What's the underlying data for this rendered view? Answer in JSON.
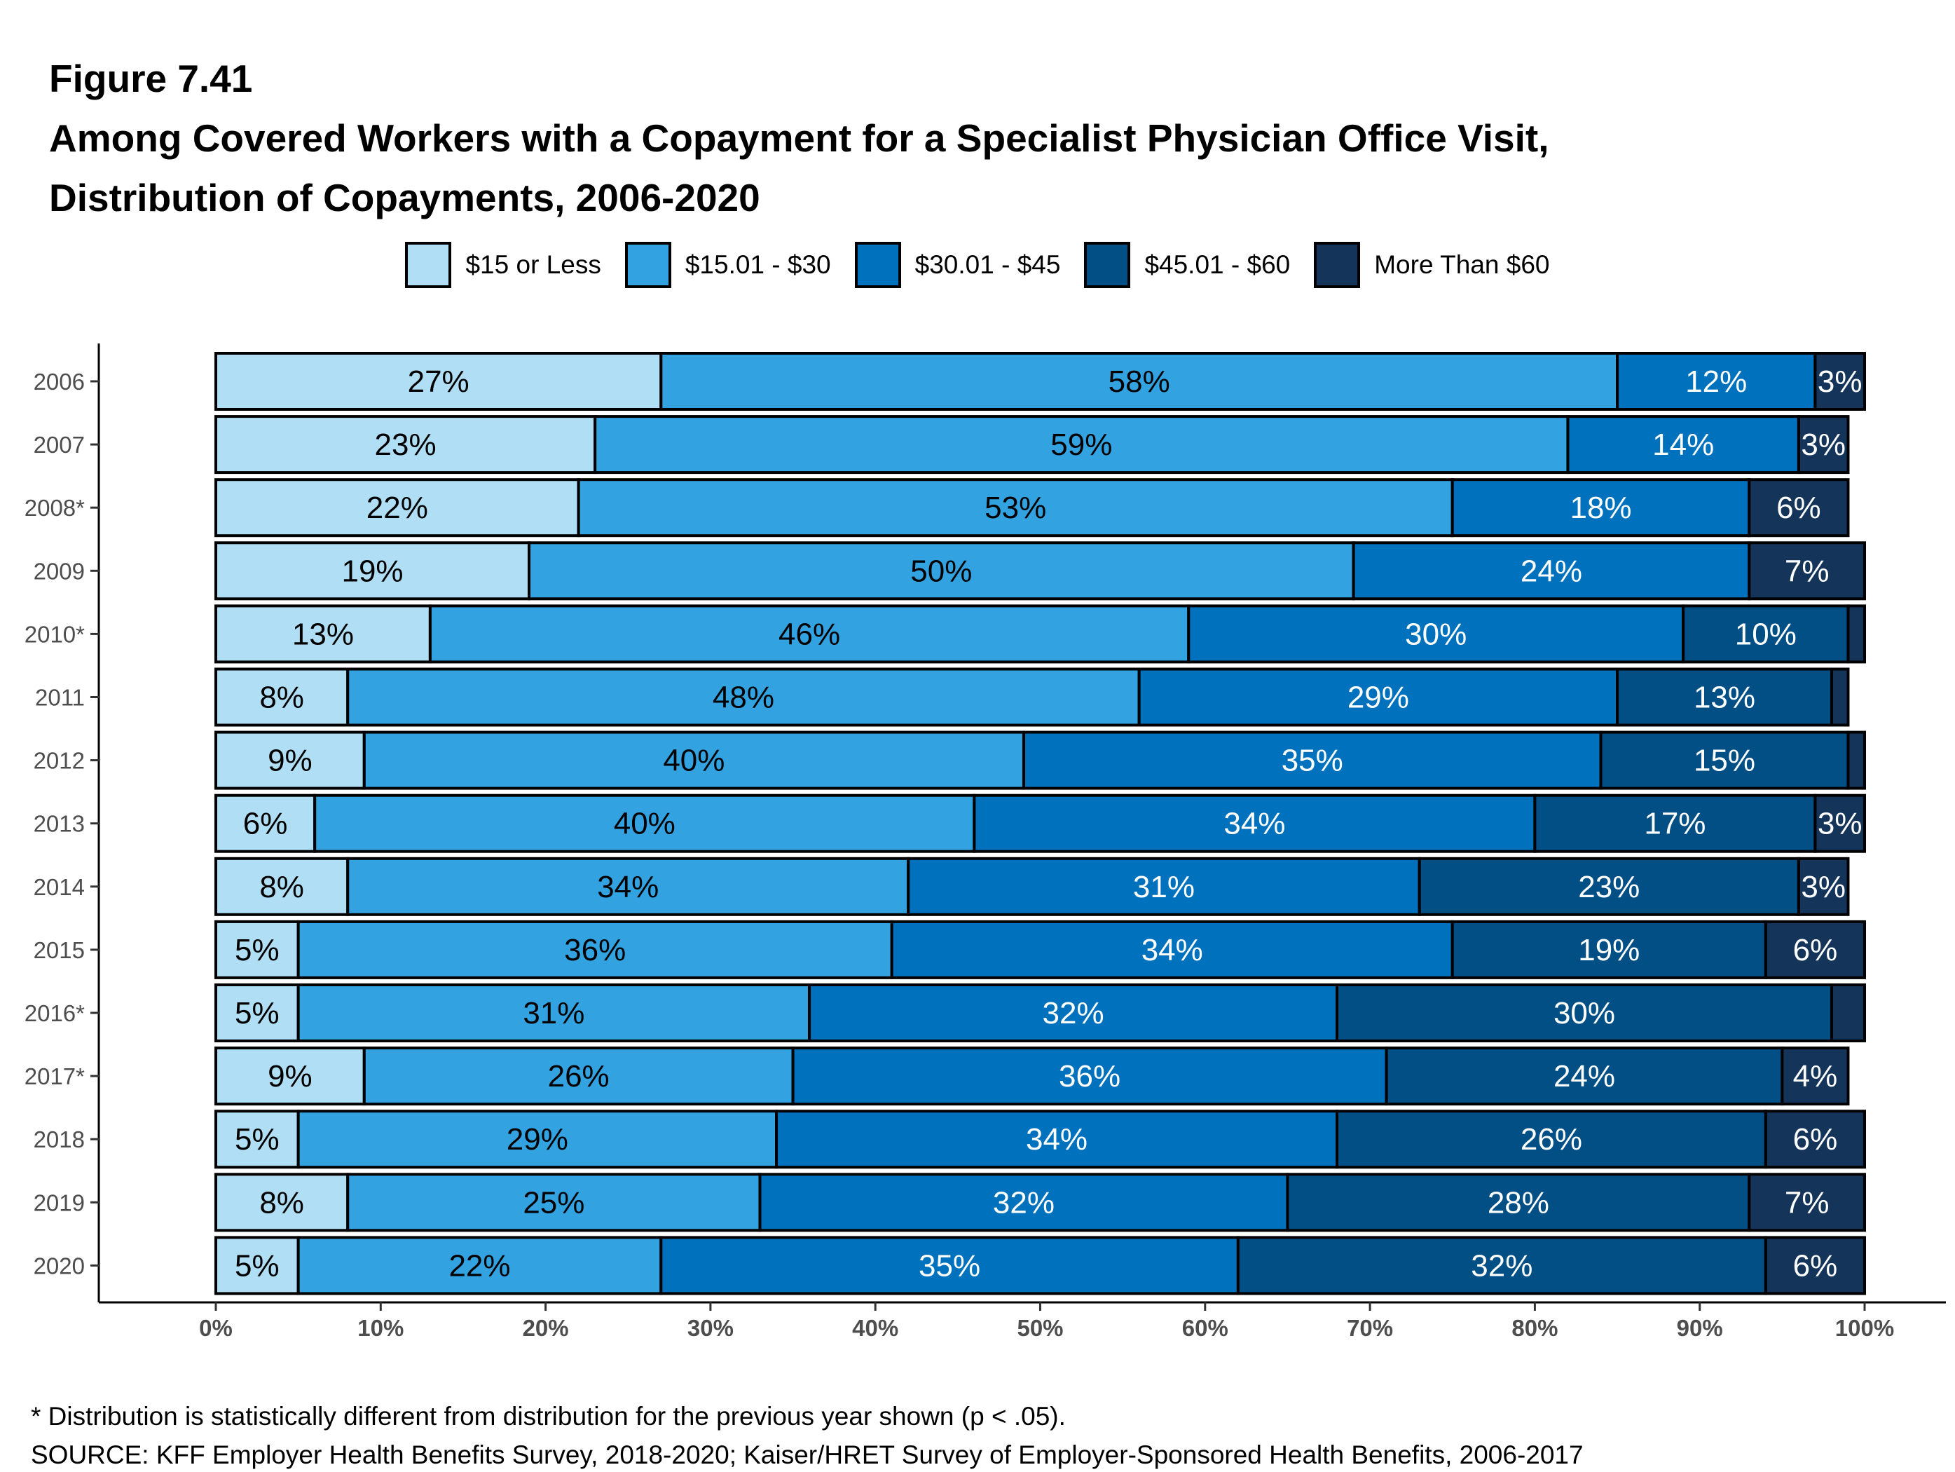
{
  "figure_label": "Figure 7.41",
  "title_line1": "Among Covered Workers with a Copayment for a Specialist Physician Office Visit,",
  "title_line2": "Distribution of Copayments, 2006-2020",
  "footnote": "* Distribution is statistically different from distribution for the previous year shown (p < .05).",
  "source": "SOURCE: KFF Employer Health Benefits Survey, 2018-2020; Kaiser/HRET Survey of Employer-Sponsored Health Benefits, 2006-2017",
  "chart_data": {
    "type": "bar",
    "orientation": "horizontal",
    "stacked": true,
    "categories": [
      "2006",
      "2007",
      "2008*",
      "2009",
      "2010*",
      "2011",
      "2012",
      "2013",
      "2014",
      "2015",
      "2016*",
      "2017*",
      "2018",
      "2019",
      "2020"
    ],
    "series": [
      {
        "name": "$15 or Less",
        "color": "#b0def4",
        "values": [
          27,
          23,
          22,
          19,
          13,
          8,
          9,
          6,
          8,
          5,
          5,
          9,
          5,
          8,
          5
        ]
      },
      {
        "name": "$15.01 - $30",
        "color": "#32a2e0",
        "values": [
          58,
          59,
          53,
          50,
          46,
          48,
          40,
          40,
          34,
          36,
          31,
          26,
          29,
          25,
          22
        ]
      },
      {
        "name": "$30.01 - $45",
        "color": "#0071bc",
        "values": [
          12,
          14,
          18,
          24,
          30,
          29,
          35,
          34,
          31,
          34,
          32,
          36,
          34,
          32,
          35
        ]
      },
      {
        "name": "$45.01 - $60",
        "color": "#024f86",
        "values": [
          null,
          null,
          null,
          null,
          10,
          13,
          15,
          17,
          23,
          19,
          30,
          24,
          26,
          28,
          32
        ]
      },
      {
        "name": "More Than $60",
        "color": "#14345a",
        "values": [
          3,
          3,
          6,
          7,
          2,
          1,
          1,
          3,
          3,
          6,
          2,
          4,
          6,
          7,
          6
        ]
      }
    ],
    "xlim": [
      0,
      100
    ],
    "xticks": [
      "0%",
      "10%",
      "20%",
      "30%",
      "40%",
      "50%",
      "60%",
      "70%",
      "80%",
      "90%",
      "100%"
    ],
    "legend": "top",
    "grid": false
  }
}
